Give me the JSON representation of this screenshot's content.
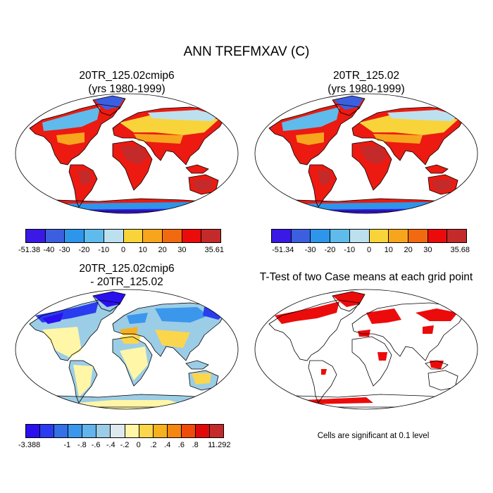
{
  "main_title": "ANN TREFMXAV (C)",
  "panels": [
    {
      "title1": "20TR_125.02cmip6",
      "title2": "(yrs 1980-1999)"
    },
    {
      "title1": "20TR_125.02",
      "title2": "(yrs 1980-1999)"
    },
    {
      "title1": "20TR_125.02cmip6",
      "title2": "- 20TR_125.02"
    },
    {
      "title1": "T-Test of two Case means at each grid point",
      "title2": ""
    }
  ],
  "colorbars": {
    "abs1": {
      "colors": [
        "#3a18e6",
        "#3c5fe0",
        "#2d95ea",
        "#5fbbec",
        "#bde0ee",
        "#f8d43a",
        "#f8a51e",
        "#f26a0f",
        "#ec0b0b",
        "#c52a2a"
      ],
      "labels": [
        "-51.38",
        "-40",
        "-30",
        "-20",
        "-10",
        "0",
        "10",
        "20",
        "30",
        "35.61"
      ]
    },
    "abs2": {
      "colors": [
        "#3a18e6",
        "#3c5fe0",
        "#2d95ea",
        "#5fbbec",
        "#bde0ee",
        "#f8d43a",
        "#f8a51e",
        "#f26a0f",
        "#ec0b0b",
        "#c52a2a"
      ],
      "labels": [
        "-51.34",
        "-30",
        "-20",
        "-10",
        "0",
        "10",
        "20",
        "30",
        "35.68"
      ]
    },
    "diff": {
      "colors": [
        "#2a10ef",
        "#2a3cf0",
        "#3470e6",
        "#3b97ec",
        "#62b4ea",
        "#9ccde6",
        "#dde9ee",
        "#fff6a8",
        "#fbd64c",
        "#f6b11f",
        "#f48612",
        "#ef4b0b",
        "#e00a0a",
        "#c52a2a"
      ],
      "labels": [
        "-3.388",
        "-1",
        "-.8",
        "-.6",
        "-.4",
        "-.2",
        "0",
        ".2",
        ".4",
        ".6",
        ".8",
        "1",
        "1.292"
      ]
    }
  },
  "note": "Cells are significant at 0.1 level"
}
